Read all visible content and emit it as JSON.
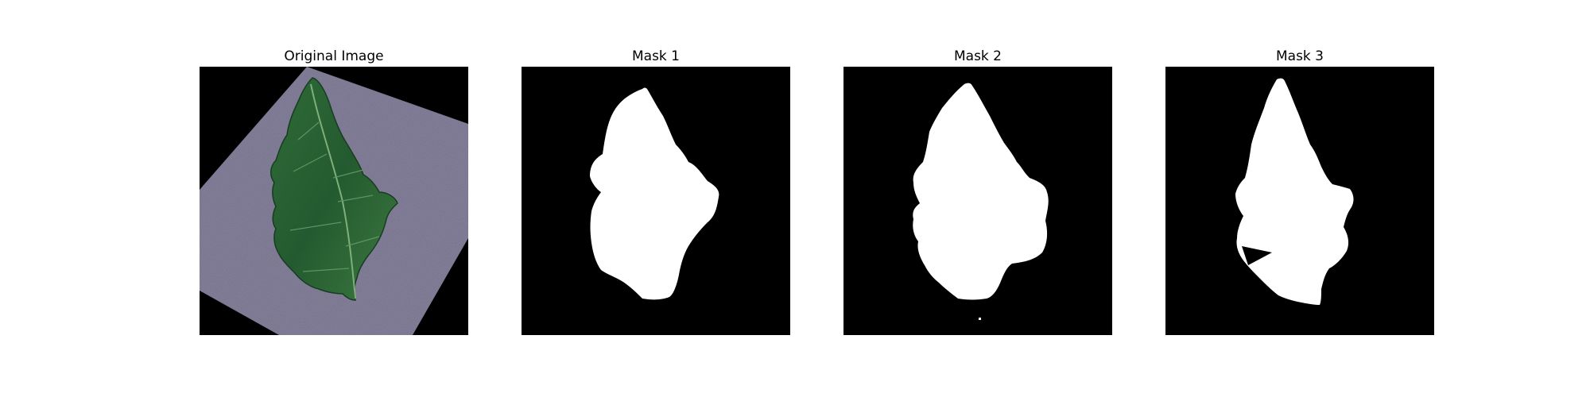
{
  "figure": {
    "panels": [
      {
        "title": "Original Image",
        "kind": "photo"
      },
      {
        "title": "Mask 1",
        "kind": "mask"
      },
      {
        "title": "Mask 2",
        "kind": "mask"
      },
      {
        "title": "Mask 3",
        "kind": "mask"
      }
    ]
  },
  "colors": {
    "background": "#000000",
    "mask_foreground": "#ffffff",
    "surface": "#6b6784",
    "leaf_dark": "#1f4a28",
    "leaf_mid": "#2f6b39",
    "leaf_light": "#4c8a50",
    "vein": "#7fae7a"
  }
}
